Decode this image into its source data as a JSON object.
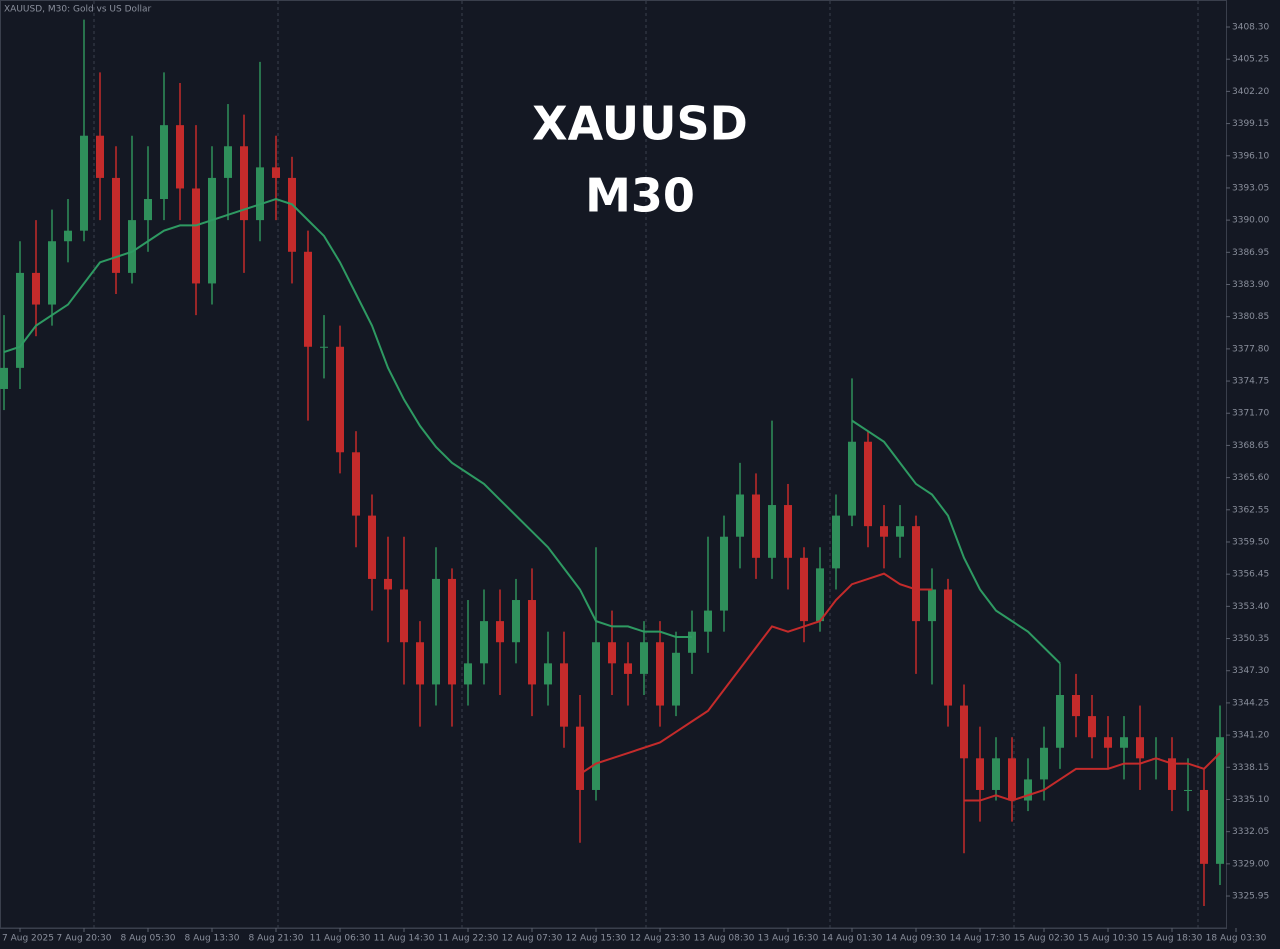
{
  "chart_data": {
    "type": "candlestick",
    "title": "XAUUSD, M30:  Gold vs US Dollar",
    "overlay": [
      "XAUUSD",
      "M30"
    ],
    "up_color": "#2f8f5b",
    "down_color": "#c42b2b",
    "categories": [
      null,
      "7 Aug 2025",
      null,
      null,
      null,
      "7 Aug 20:30",
      null,
      null,
      null,
      "8 Aug 05:30",
      null,
      null,
      null,
      "8 Aug 13:30",
      null,
      null,
      null,
      "8 Aug 21:30",
      null,
      null,
      null,
      "11 Aug 06:30",
      null,
      null,
      null,
      "11 Aug 14:30",
      null,
      null,
      null,
      "11 Aug 22:30",
      null,
      null,
      null,
      "12 Aug 07:30",
      null,
      null,
      null,
      "12 Aug 15:30",
      null,
      null,
      null,
      "12 Aug 23:30",
      null,
      null,
      null,
      "13 Aug 08:30",
      null,
      null,
      null,
      "13 Aug 16:30",
      null,
      null,
      null,
      "14 Aug 01:30",
      null,
      null,
      null,
      "14 Aug 09:30",
      null,
      null,
      null,
      "14 Aug 17:30",
      null,
      null,
      null,
      "15 Aug 02:30",
      null,
      null,
      null,
      "15 Aug 10:30",
      null,
      null,
      null,
      "15 Aug 18:30",
      null,
      null,
      null,
      "18 Aug 03:30"
    ],
    "open": [
      3374,
      3376,
      3385,
      3382,
      3388,
      3389,
      3398,
      3394,
      3385,
      3390,
      3392,
      3399,
      3393,
      3384,
      3394,
      3397,
      3390,
      3395,
      3394,
      3387,
      3378,
      3378,
      3368,
      3362,
      3356,
      3355,
      3350,
      3346,
      3356,
      3346,
      3348,
      3352,
      3350,
      3354,
      3346,
      3348,
      3342,
      3336,
      3350,
      3348,
      3347,
      3350,
      3344,
      3349,
      3351,
      3353,
      3360,
      3364,
      3358,
      3363,
      3358,
      3352,
      3357,
      3362,
      3369,
      3361,
      3360,
      3361,
      3352,
      3355,
      3344,
      3339,
      3336,
      3339,
      3335,
      3337,
      3340,
      3345,
      3343,
      3341,
      3340,
      3341,
      3339,
      3339,
      3336,
      3336,
      3329,
      null
    ],
    "high": [
      3381,
      3388,
      3390,
      3391,
      3392,
      3409,
      3404,
      3397,
      3398,
      3397,
      3404,
      3403,
      3399,
      3397,
      3401,
      3400,
      3405,
      3398,
      3396,
      3389,
      3381,
      3380,
      3370,
      3364,
      3360,
      3360,
      3352,
      3359,
      3357,
      3354,
      3355,
      3355,
      3356,
      3357,
      3351,
      3351,
      3345,
      3359,
      3353,
      3350,
      3352,
      3352,
      3351,
      3353,
      3360,
      3362,
      3367,
      3366,
      3371,
      3365,
      3359,
      3359,
      3364,
      3375,
      3370,
      3363,
      3363,
      3362,
      3357,
      3356,
      3346,
      3342,
      3341,
      3341,
      3339,
      3342,
      3348,
      3347,
      3345,
      3343,
      3343,
      3344,
      3341,
      3341,
      3339,
      3338,
      3344,
      null
    ],
    "low": [
      3372,
      3374,
      3379,
      3380,
      3386,
      3388,
      3390,
      3383,
      3384,
      3387,
      3390,
      3390,
      3381,
      3382,
      3390,
      3385,
      3388,
      3390,
      3384,
      3371,
      3375,
      3366,
      3359,
      3353,
      3350,
      3346,
      3342,
      3344,
      3342,
      3344,
      3346,
      3345,
      3348,
      3343,
      3344,
      3340,
      3331,
      3335,
      3345,
      3344,
      3345,
      3342,
      3343,
      3347,
      3349,
      3351,
      3357,
      3356,
      3356,
      3355,
      3350,
      3351,
      3355,
      3361,
      3359,
      3357,
      3358,
      3347,
      3346,
      3342,
      3330,
      3333,
      3335,
      3333,
      3334,
      3335,
      3338,
      3341,
      3339,
      3338,
      3337,
      3336,
      3337,
      3334,
      3334,
      3325,
      3327,
      null
    ],
    "close": [
      3376,
      3385,
      3382,
      3388,
      3389,
      3398,
      3394,
      3385,
      3390,
      3392,
      3399,
      3393,
      3384,
      3394,
      3397,
      3390,
      3395,
      3394,
      3387,
      3378,
      3378,
      3368,
      3362,
      3356,
      3355,
      3350,
      3346,
      3356,
      3346,
      3348,
      3352,
      3350,
      3354,
      3346,
      3348,
      3342,
      3336,
      3350,
      3348,
      3347,
      3350,
      3344,
      3349,
      3351,
      3353,
      3360,
      3364,
      3358,
      3363,
      3358,
      3352,
      3357,
      3362,
      3369,
      3361,
      3360,
      3361,
      3352,
      3355,
      3344,
      3339,
      3336,
      3339,
      3335,
      3337,
      3340,
      3345,
      3343,
      3341,
      3340,
      3341,
      3339,
      3339,
      3336,
      3336,
      3329,
      3341,
      null
    ],
    "series": [
      {
        "name": "MA up",
        "color": "#2e9a62",
        "values": [
          3377.5,
          3378,
          3380,
          3381,
          3382,
          3384,
          3386,
          3386.5,
          3387,
          3388,
          3389,
          3389.5,
          3389.5,
          3390,
          3390.5,
          3391,
          3391.5,
          3392,
          3391.5,
          3390,
          3388.5,
          3386,
          3383,
          3380,
          3376,
          3373,
          3370.5,
          3368.5,
          3367,
          3366,
          3365,
          3363.5,
          3362,
          3360.5,
          3359,
          3357,
          3355,
          3352,
          3351.5,
          3351.5,
          3351,
          3351,
          3350.5,
          3350.5,
          null,
          null,
          null,
          null,
          null,
          null,
          null,
          null,
          null,
          3371,
          3370,
          3369,
          3367,
          3365,
          3364,
          3362,
          3358,
          3355,
          3353,
          3352,
          3351,
          3349.5,
          3348,
          null,
          null,
          null,
          null,
          null,
          null,
          null,
          null,
          null,
          null,
          null
        ]
      },
      {
        "name": "MA down",
        "color": "#c42b2b",
        "values": [
          null,
          null,
          null,
          null,
          null,
          null,
          null,
          null,
          null,
          null,
          null,
          null,
          null,
          null,
          null,
          null,
          null,
          null,
          null,
          null,
          null,
          null,
          null,
          null,
          null,
          null,
          null,
          null,
          null,
          null,
          null,
          null,
          null,
          null,
          null,
          null,
          3337.5,
          3338.5,
          3339,
          3339.5,
          3340,
          3340.5,
          3341.5,
          3342.5,
          3343.5,
          3345.5,
          3347.5,
          3349.5,
          3351.5,
          3351,
          3351.5,
          3352,
          3354,
          3355.5,
          3356,
          3356.5,
          3355.5,
          3355,
          3355,
          null,
          3335,
          3335,
          3335.5,
          3335,
          3335.5,
          3336,
          3337,
          3338,
          3338,
          3338,
          3338.5,
          3338.5,
          3339,
          3338.5,
          3338.5,
          3338,
          3339.5,
          null
        ]
      }
    ],
    "ylim": [
      3322.92,
      3410.86
    ],
    "yticks": [
      {
        "value": 3325.95,
        "label": "3325.95"
      },
      {
        "value": 3329,
        "label": "3329.00"
      },
      {
        "value": 3332.05,
        "label": "3332.05"
      },
      {
        "value": 3335.1,
        "label": "3335.10"
      },
      {
        "value": 3338.15,
        "label": "3338.15"
      },
      {
        "value": 3341.2,
        "label": "3341.20"
      },
      {
        "value": 3344.25,
        "label": "3344.25"
      },
      {
        "value": 3347.3,
        "label": "3347.30"
      },
      {
        "value": 3350.35,
        "label": "3350.35"
      },
      {
        "value": 3353.4,
        "label": "3353.40"
      },
      {
        "value": 3356.45,
        "label": "3356.45"
      },
      {
        "value": 3359.5,
        "label": "3359.50"
      },
      {
        "value": 3362.55,
        "label": "3362.55"
      },
      {
        "value": 3365.6,
        "label": "3365.60"
      },
      {
        "value": 3368.65,
        "label": "3368.65"
      },
      {
        "value": 3371.7,
        "label": "3371.70"
      },
      {
        "value": 3374.75,
        "label": "3374.75"
      },
      {
        "value": 3377.8,
        "label": "3377.80"
      },
      {
        "value": 3380.85,
        "label": "3380.85"
      },
      {
        "value": 3383.9,
        "label": "3383.90"
      },
      {
        "value": 3386.95,
        "label": "3386.95"
      },
      {
        "value": 3390,
        "label": "3390.00"
      },
      {
        "value": 3393.05,
        "label": "3393.05"
      },
      {
        "value": 3396.1,
        "label": "3396.10"
      },
      {
        "value": 3399.15,
        "label": "3399.15"
      },
      {
        "value": 3402.2,
        "label": "3402.20"
      },
      {
        "value": 3405.25,
        "label": "3405.25"
      },
      {
        "value": 3408.3,
        "label": "3408.30"
      }
    ]
  }
}
